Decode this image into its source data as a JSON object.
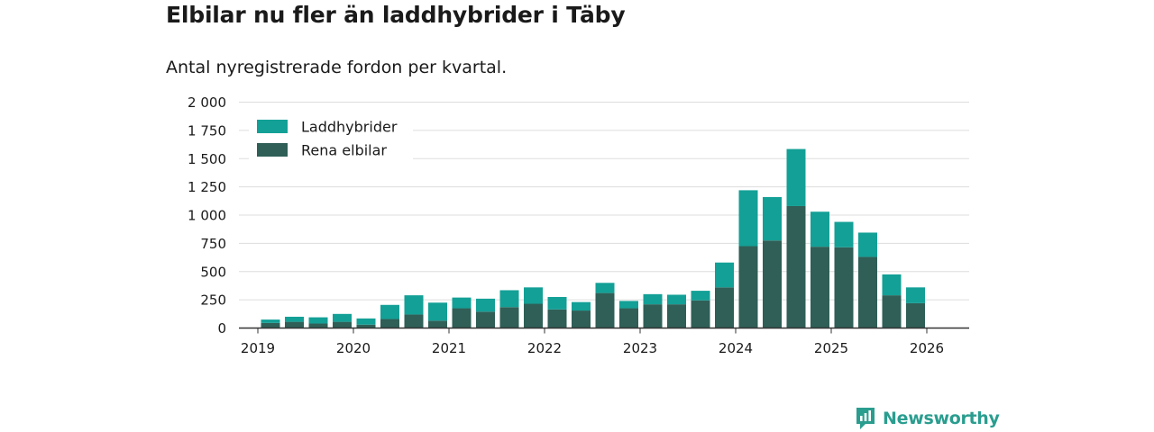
{
  "header": {
    "title": "Elbilar nu fler än laddhybrider i Täby",
    "subtitle": "Antal nyregistrerade fordon per kvartal."
  },
  "brand": {
    "name": "Newsworthy",
    "icon": "newsworthy-logo-icon"
  },
  "colors": {
    "plugin_hybrid": "#13a096",
    "electric": "#2f5f57",
    "grid": "#dddddd",
    "axis": "#333333"
  },
  "chart_data": {
    "type": "bar",
    "stacked": true,
    "title": "Elbilar nu fler än laddhybrider i Täby",
    "subtitle": "Antal nyregistrerade fordon per kvartal.",
    "xlabel": "",
    "ylabel": "",
    "ylim": [
      0,
      2000
    ],
    "y_ticks": [
      0,
      250,
      500,
      750,
      1000,
      1250,
      1500,
      1750,
      2000
    ],
    "y_tick_labels": [
      "0",
      "250",
      "500",
      "750",
      "1 000",
      "1 250",
      "1 500",
      "1 750",
      "2 000"
    ],
    "x_ticks": [
      "2019",
      "2020",
      "2021",
      "2022",
      "2023",
      "2024",
      "2025",
      "2026"
    ],
    "legend_position": "top-left",
    "categories": [
      "2019 Q2",
      "2019 Q3",
      "2019 Q4",
      "2020 Q1",
      "2020 Q2",
      "2020 Q3",
      "2020 Q4",
      "2021 Q1",
      "2021 Q2",
      "2021 Q3",
      "2021 Q4",
      "2022 Q1",
      "2022 Q2",
      "2022 Q3",
      "2022 Q4",
      "2023 Q1",
      "2023 Q2",
      "2023 Q3",
      "2023 Q4",
      "2024 Q1",
      "2024 Q2",
      "2024 Q3",
      "2024 Q4",
      "2025 Q1",
      "2025 Q2",
      "2025 Q3",
      "2025 Q4",
      "2026 Q1"
    ],
    "series": [
      {
        "name": "Rena elbilar",
        "values": [
          45,
          55,
          40,
          55,
          30,
          80,
          120,
          65,
          175,
          145,
          185,
          215,
          165,
          155,
          310,
          175,
          210,
          210,
          245,
          360,
          725,
          775,
          1080,
          720,
          715,
          630,
          290,
          220
        ]
      },
      {
        "name": "Laddhybrider",
        "values": [
          30,
          45,
          55,
          70,
          55,
          125,
          170,
          160,
          95,
          115,
          150,
          145,
          110,
          75,
          90,
          65,
          90,
          85,
          85,
          220,
          495,
          385,
          505,
          310,
          225,
          215,
          185,
          140
        ]
      }
    ]
  }
}
